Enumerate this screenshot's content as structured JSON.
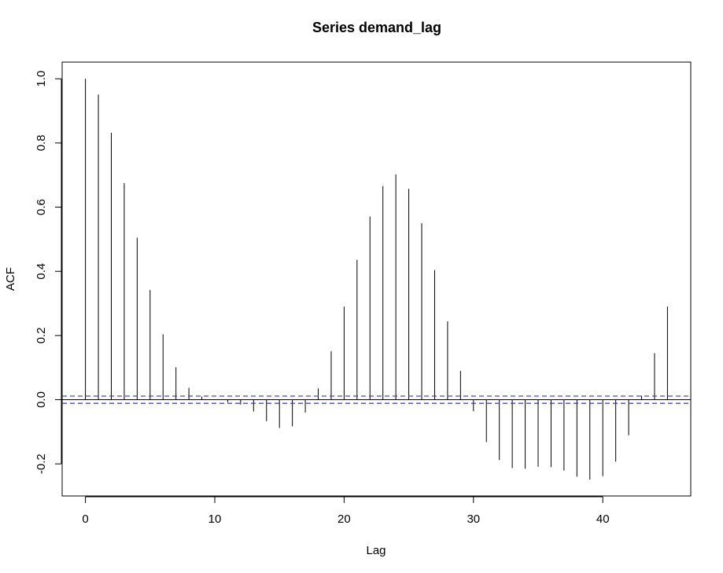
{
  "chart_data": {
    "type": "bar",
    "title": "Series  demand_lag",
    "xlabel": "Lag",
    "ylabel": "ACF",
    "xlim": [
      -1.8,
      46.8
    ],
    "ylim": [
      -0.3,
      1.052
    ],
    "x_ticks": [
      0,
      10,
      20,
      30,
      40
    ],
    "y_ticks": [
      -0.2,
      0.0,
      0.2,
      0.4,
      0.6,
      0.8,
      1.0
    ],
    "x_tick_labels": [
      "0",
      "10",
      "20",
      "30",
      "40"
    ],
    "y_tick_labels": [
      "-0.2",
      "0.0",
      "0.2",
      "0.4",
      "0.6",
      "0.8",
      "1.0"
    ],
    "lags": [
      0,
      1,
      2,
      3,
      4,
      5,
      6,
      7,
      8,
      9,
      10,
      11,
      12,
      13,
      14,
      15,
      16,
      17,
      18,
      19,
      20,
      21,
      22,
      23,
      24,
      25,
      26,
      27,
      28,
      29,
      30,
      31,
      32,
      33,
      34,
      35,
      36,
      37,
      38,
      39,
      40,
      41,
      42,
      43,
      44,
      45
    ],
    "acf": [
      1.0,
      0.951,
      0.832,
      0.675,
      0.505,
      0.342,
      0.204,
      0.101,
      0.037,
      0.01,
      0.0,
      -0.008,
      -0.015,
      -0.037,
      -0.067,
      -0.088,
      -0.083,
      -0.04,
      0.035,
      0.151,
      0.29,
      0.436,
      0.571,
      0.666,
      0.702,
      0.657,
      0.55,
      0.404,
      0.244,
      0.09,
      -0.036,
      -0.132,
      -0.188,
      -0.213,
      -0.215,
      -0.209,
      -0.21,
      -0.221,
      -0.24,
      -0.249,
      -0.238,
      -0.193,
      -0.111,
      0.012,
      0.145,
      0.29
    ],
    "confidence_bound": 0.0112,
    "colors": {
      "spike": "#000000",
      "ci": "#3333cc",
      "axis": "#000000",
      "zero_line": "#000000"
    },
    "grid": false
  }
}
